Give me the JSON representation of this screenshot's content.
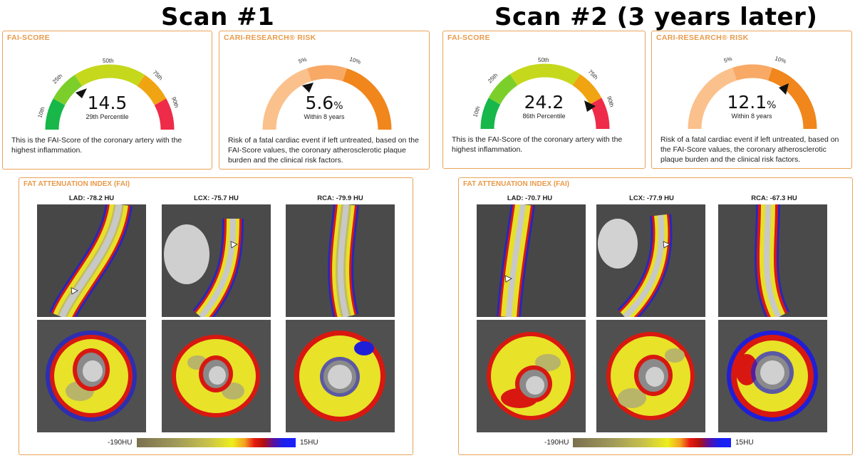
{
  "scans": [
    {
      "title": "Scan #1",
      "fai_score": {
        "header": "FAI-SCORE",
        "value": "14.5",
        "percentile_text": "29th Percentile",
        "percentile": 29,
        "ticks": [
          "10th",
          "25th",
          "50th",
          "75th",
          "90th"
        ],
        "description": "This is the FAI-Score of the coronary artery with the highest inflammation."
      },
      "cari_risk": {
        "header": "CARI-RESEARCH® RISK",
        "value": "5.6",
        "unit": "%",
        "sub": "Within 8 years",
        "risk_percent": 5.6,
        "ticks": [
          "5%",
          "10%"
        ],
        "description": "Risk of a fatal cardiac event if left untreated, based on the FAI-Score values, the coronary atherosclerotic plaque burden and the clinical risk factors."
      },
      "fai": {
        "header": "FAT ATTENUATION INDEX (FAI)",
        "arteries": [
          {
            "label": "LAD: -78.2 HU"
          },
          {
            "label": "LCX: -75.7 HU"
          },
          {
            "label": "RCA: -79.9 HU"
          }
        ]
      },
      "colorbar": {
        "min": "-190HU",
        "max": "15HU"
      }
    },
    {
      "title": "Scan #2 (3 years later)",
      "fai_score": {
        "header": "FAI-SCORE",
        "value": "24.2",
        "percentile_text": "86th Percentile",
        "percentile": 86,
        "ticks": [
          "10th",
          "25th",
          "50th",
          "75th",
          "90th"
        ],
        "description": "This is the FAI-Score of the coronary artery with the highest inflammation."
      },
      "cari_risk": {
        "header": "CARI-RESEARCH® RISK",
        "value": "12.1",
        "unit": "%",
        "sub": "Within 8 years",
        "risk_percent": 12.1,
        "ticks": [
          "5%",
          "10%"
        ],
        "description": "Risk of a fatal cardiac event if left untreated, based on the FAI-Score values, the coronary atherosclerotic plaque burden and the clinical risk factors."
      },
      "fai": {
        "header": "FAT ATTENUATION INDEX (FAI)",
        "arteries": [
          {
            "label": "LAD: -70.7 HU"
          },
          {
            "label": "LCX: -77.9 HU"
          },
          {
            "label": "RCA: -67.3 HU"
          }
        ]
      },
      "colorbar": {
        "min": "-190HU",
        "max": "15HU"
      }
    }
  ]
}
